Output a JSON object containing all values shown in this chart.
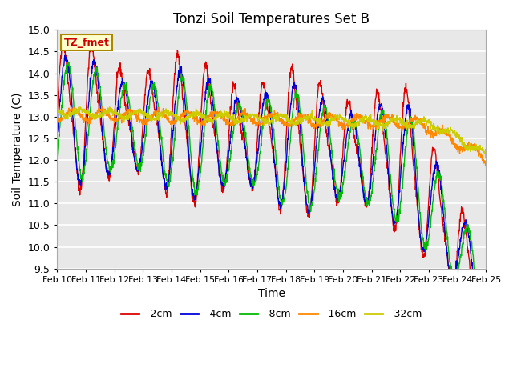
{
  "title": "Tonzi Soil Temperatures Set B",
  "xlabel": "Time",
  "ylabel": "Soil Temperature (C)",
  "annotation": "TZ_fmet",
  "ylim": [
    9.5,
    15.0
  ],
  "yticks": [
    9.5,
    10.0,
    10.5,
    11.0,
    11.5,
    12.0,
    12.5,
    13.0,
    13.5,
    14.0,
    14.5,
    15.0
  ],
  "series_colors": [
    "#dd0000",
    "#0000dd",
    "#00bb00",
    "#ff8800",
    "#cccc00"
  ],
  "series_labels": [
    "-2cm",
    "-4cm",
    "-8cm",
    "-16cm",
    "-32cm"
  ],
  "bg_color": "#ffffff",
  "plot_bg_color": "#ffffff",
  "inner_bg_color": "#e8e8e8",
  "grid_color": "#ffffff",
  "x_dates": [
    "Feb 10",
    "Feb 11",
    "Feb 12",
    "Feb 13",
    "Feb 14",
    "Feb 15",
    "Feb 16",
    "Feb 17",
    "Feb 18",
    "Feb 19",
    "Feb 20",
    "Feb 21",
    "Feb 22",
    "Feb 23",
    "Feb 24",
    "Feb 25"
  ]
}
